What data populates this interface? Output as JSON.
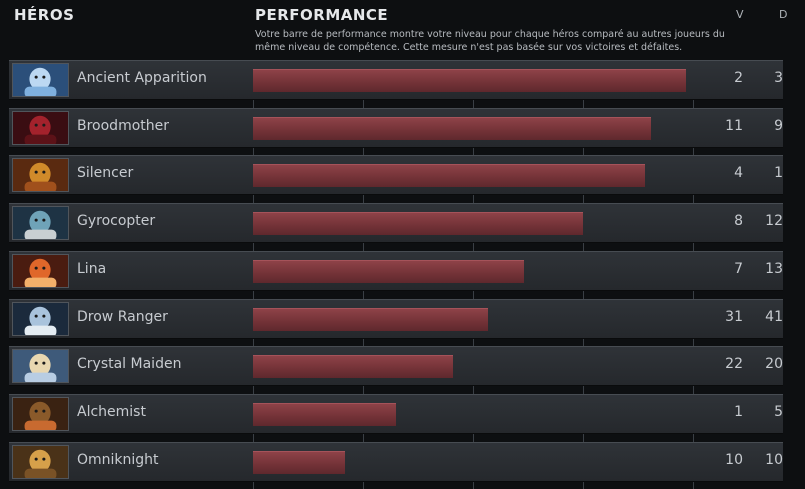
{
  "header": {
    "heroes_label": "HÉROS",
    "performance_label": "PERFORMANCE",
    "wins_label": "V",
    "losses_label": "D",
    "description": "Votre barre de performance montre votre niveau pour chaque héros comparé au autres joueurs du même niveau de compétence. Cette mesure n'est pas basée sur vos victoires et défaites."
  },
  "colors": {
    "bar": "#7a373c",
    "row_background": "#2b2f33",
    "page_background": "#0d0f11"
  },
  "heroes": [
    {
      "name": "Ancient Apparition",
      "wins": "2",
      "losses": "3",
      "performance": 0.985,
      "portrait_icon": "ancient-apparition-portrait"
    },
    {
      "name": "Broodmother",
      "wins": "11",
      "losses": "9",
      "performance": 0.905,
      "portrait_icon": "broodmother-portrait"
    },
    {
      "name": "Silencer",
      "wins": "4",
      "losses": "1",
      "performance": 0.89,
      "portrait_icon": "silencer-portrait"
    },
    {
      "name": "Gyrocopter",
      "wins": "8",
      "losses": "12",
      "performance": 0.75,
      "portrait_icon": "gyrocopter-portrait"
    },
    {
      "name": "Lina",
      "wins": "7",
      "losses": "13",
      "performance": 0.615,
      "portrait_icon": "lina-portrait"
    },
    {
      "name": "Drow Ranger",
      "wins": "31",
      "losses": "41",
      "performance": 0.535,
      "portrait_icon": "drow-ranger-portrait"
    },
    {
      "name": "Crystal Maiden",
      "wins": "22",
      "losses": "20",
      "performance": 0.455,
      "portrait_icon": "crystal-maiden-portrait"
    },
    {
      "name": "Alchemist",
      "wins": "1",
      "losses": "5",
      "performance": 0.325,
      "portrait_icon": "alchemist-portrait"
    },
    {
      "name": "Omniknight",
      "wins": "10",
      "losses": "10",
      "performance": 0.21,
      "portrait_icon": "omniknight-portrait"
    }
  ]
}
